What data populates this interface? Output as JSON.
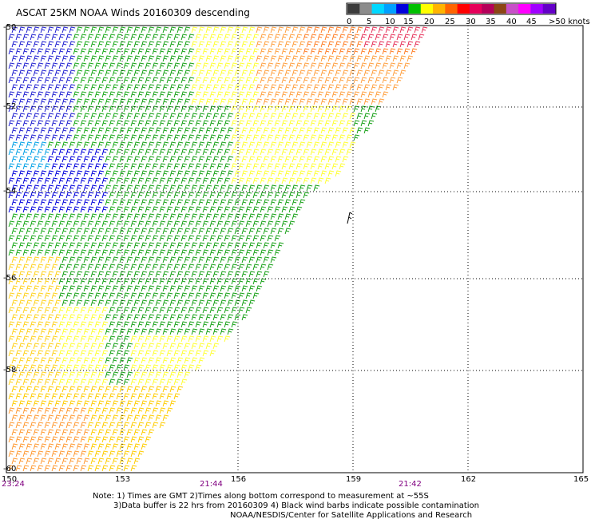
{
  "title": "ASCAT 25KM NOAA Winds 20160309 descending",
  "legend": {
    "labels": [
      "0",
      "5",
      "10",
      "15",
      "20",
      "25",
      "30",
      "35",
      "40",
      "45",
      ">50 knots"
    ],
    "colors": [
      "#3c3c3c",
      "#8c8c8c",
      "#00d8ff",
      "#00a0ff",
      "#0000dc",
      "#00c000",
      "#ffff00",
      "#ffb400",
      "#ff6400",
      "#ff0000",
      "#e6005a",
      "#b4005a",
      "#8c4614",
      "#c850c8",
      "#ff00ff",
      "#a000ff",
      "#6400c8"
    ]
  },
  "map": {
    "lon_labels": [
      "150",
      "153",
      "156",
      "159",
      "162",
      "165"
    ],
    "lat_labels": [
      "-50",
      "-52",
      "-54",
      "-56",
      "-58",
      "-60"
    ],
    "time_labels": [
      "23:24",
      "21:44",
      "21:42"
    ]
  },
  "notes": [
    "Note: 1) Times are GMT 2)Times along bottom correspond to measurement at ~55S",
    "3)Data buffer is 22 hrs from 20160309 4) Black wind barbs indicate possible contamination",
    "NOAA/NESDIS/Center for Satellite Applications and Research"
  ]
}
